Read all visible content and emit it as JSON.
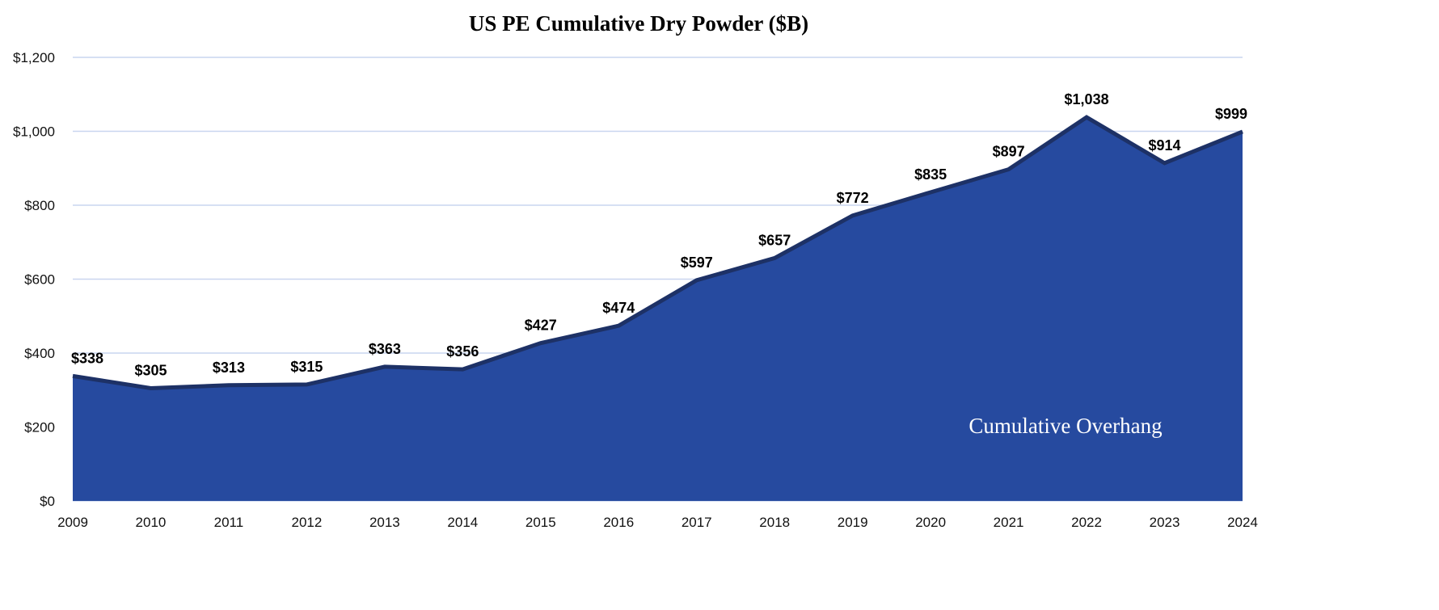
{
  "chart_data": {
    "type": "area",
    "title": "US PE Cumulative Dry Powder ($B)",
    "xlabel": "",
    "ylabel": "",
    "categories": [
      "2009",
      "2010",
      "2011",
      "2012",
      "2013",
      "2014",
      "2015",
      "2016",
      "2017",
      "2018",
      "2019",
      "2020",
      "2021",
      "2022",
      "2023",
      "2024"
    ],
    "series": [
      {
        "name": "Cumulative Overhang",
        "values": [
          338,
          305,
          313,
          315,
          363,
          356,
          427,
          474,
          597,
          657,
          772,
          835,
          897,
          1038,
          914,
          999
        ]
      }
    ],
    "data_labels": [
      "$338",
      "$305",
      "$313",
      "$315",
      "$363",
      "$356",
      "$427",
      "$474",
      "$597",
      "$657",
      "$772",
      "$835",
      "$897",
      "$1,038",
      "$914",
      "$999"
    ],
    "ylim": [
      0,
      1200
    ],
    "yticks": [
      0,
      200,
      400,
      600,
      800,
      1000,
      1200
    ],
    "ytick_labels": [
      "$0",
      "$200",
      "$400",
      "$600",
      "$800",
      "$1,000",
      "$1,200"
    ],
    "grid": true,
    "legend": "none",
    "annotation": "Cumulative Overhang",
    "colors": {
      "fill": "#264a9f",
      "line": "#1d3166",
      "grid": "#c9d5ef"
    }
  }
}
